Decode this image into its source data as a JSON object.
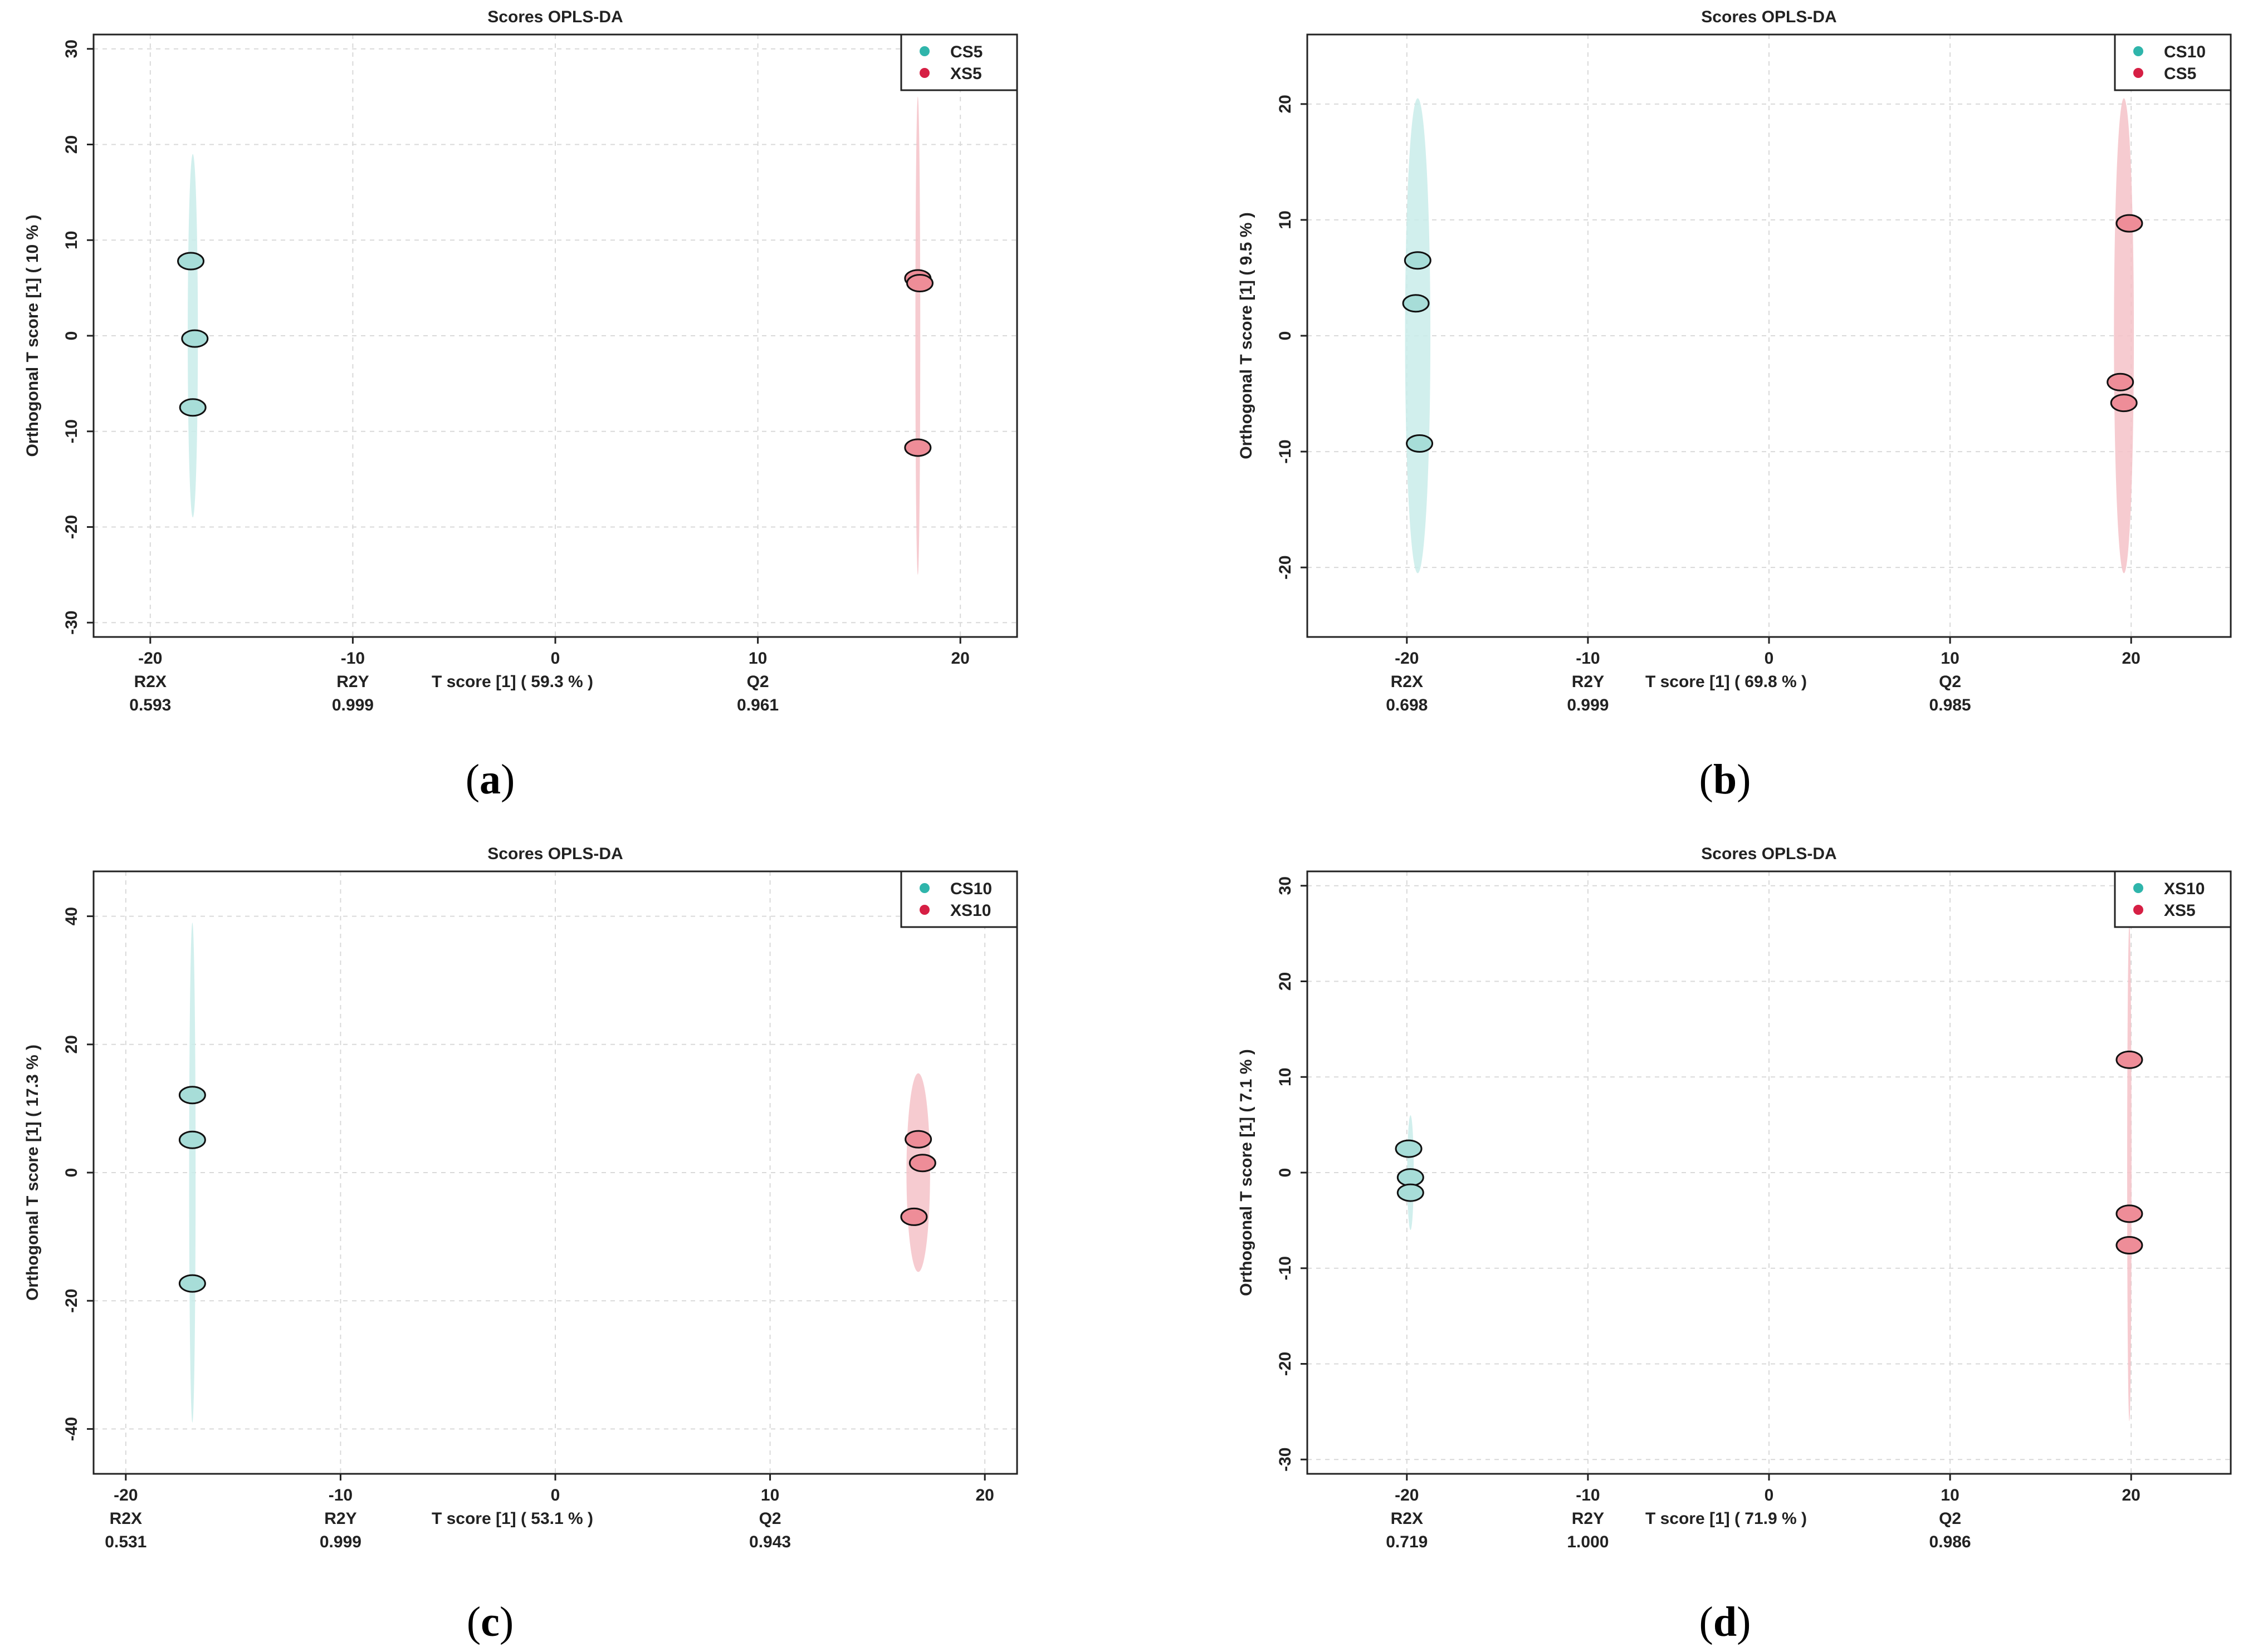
{
  "figure_type": "opls-da-scores-grid",
  "colors": {
    "group1_fill": "#a7ddd8",
    "group1_ellipse": "#c9ecea",
    "group1_legend": "#2fb5ab",
    "group2_fill": "#ee8d98",
    "group2_ellipse": "#f5c2c8",
    "group2_legend": "#d61f44",
    "grid": "#d9d9d9"
  },
  "chart_data": [
    {
      "type": "scatter",
      "caption": "a",
      "title": "Scores OPLS-DA",
      "xlabel": "T score [1] ( 59.3 % )",
      "ylabel": "Orthogonal T score [1] ( 10 % )",
      "xlim": [
        -22.8,
        22.8
      ],
      "ylim": [
        -31.5,
        31.5
      ],
      "xticks": [
        -20,
        -10,
        0,
        10,
        20
      ],
      "yticks": [
        -30,
        -20,
        -10,
        0,
        10,
        20,
        30
      ],
      "grid": true,
      "legend_position": "top-right",
      "stats": [
        {
          "label": "R2X",
          "value": "0.593",
          "x": -20
        },
        {
          "label": "R2Y",
          "value": "0.999",
          "x": -10
        },
        {
          "label": "Q2",
          "value": "0.961",
          "x": 10
        }
      ],
      "series": [
        {
          "name": "CS5",
          "points": [
            {
              "x": -18.0,
              "y": 7.8
            },
            {
              "x": -17.8,
              "y": -0.3
            },
            {
              "x": -17.9,
              "y": -7.5
            }
          ],
          "ellipse": {
            "cx": -17.9,
            "cy": 0,
            "rx": 0.25,
            "ry": 19
          }
        },
        {
          "name": "XS5",
          "points": [
            {
              "x": 17.9,
              "y": 6.0
            },
            {
              "x": 18.0,
              "y": 5.5
            },
            {
              "x": 17.9,
              "y": -11.7
            }
          ],
          "ellipse": {
            "cx": 17.9,
            "cy": 0,
            "rx": 0.12,
            "ry": 25
          }
        }
      ]
    },
    {
      "type": "scatter",
      "caption": "b",
      "title": "Scores OPLS-DA",
      "xlabel": "T score [1] ( 69.8 % )",
      "ylabel": "Orthogonal T score [1] ( 9.5 % )",
      "xlim": [
        -25.5,
        25.5
      ],
      "ylim": [
        -26,
        26
      ],
      "xticks": [
        -20,
        -10,
        0,
        10,
        20
      ],
      "yticks": [
        -20,
        -10,
        0,
        10,
        20
      ],
      "grid": true,
      "legend_position": "top-right",
      "stats": [
        {
          "label": "R2X",
          "value": "0.698",
          "x": -20
        },
        {
          "label": "R2Y",
          "value": "0.999",
          "x": -10
        },
        {
          "label": "Q2",
          "value": "0.985",
          "x": 10
        }
      ],
      "series": [
        {
          "name": "CS10",
          "points": [
            {
              "x": -19.4,
              "y": 6.5
            },
            {
              "x": -19.5,
              "y": 2.8
            },
            {
              "x": -19.3,
              "y": -9.3
            }
          ],
          "ellipse": {
            "cx": -19.4,
            "cy": 0,
            "rx": 0.7,
            "ry": 20.5
          }
        },
        {
          "name": "CS5",
          "points": [
            {
              "x": 19.9,
              "y": 9.7
            },
            {
              "x": 19.4,
              "y": -4.0
            },
            {
              "x": 19.6,
              "y": -5.8
            }
          ],
          "ellipse": {
            "cx": 19.6,
            "cy": 0,
            "rx": 0.55,
            "ry": 20.5
          }
        }
      ]
    },
    {
      "type": "scatter",
      "caption": "c",
      "title": "Scores OPLS-DA",
      "xlabel": "T score [1] ( 53.1 % )",
      "ylabel": "Orthogonal T score [1] ( 17.3 % )",
      "xlim": [
        -21.5,
        21.5
      ],
      "ylim": [
        -47,
        47
      ],
      "xticks": [
        -20,
        -10,
        0,
        10,
        20
      ],
      "yticks": [
        -40,
        -20,
        0,
        20,
        40
      ],
      "grid": true,
      "legend_position": "top-right",
      "stats": [
        {
          "label": "R2X",
          "value": "0.531",
          "x": -20
        },
        {
          "label": "R2Y",
          "value": "0.999",
          "x": -10
        },
        {
          "label": "Q2",
          "value": "0.943",
          "x": 10
        }
      ],
      "series": [
        {
          "name": "CS10",
          "points": [
            {
              "x": -16.9,
              "y": 12.1
            },
            {
              "x": -16.9,
              "y": 5.1
            },
            {
              "x": -16.9,
              "y": -17.3
            }
          ],
          "ellipse": {
            "cx": -16.9,
            "cy": 0,
            "rx": 0.15,
            "ry": 39
          }
        },
        {
          "name": "XS10",
          "points": [
            {
              "x": 16.9,
              "y": 5.2
            },
            {
              "x": 17.1,
              "y": 1.5
            },
            {
              "x": 16.7,
              "y": -6.9
            }
          ],
          "ellipse": {
            "cx": 16.9,
            "cy": 0,
            "rx": 0.55,
            "ry": 15.5
          }
        }
      ]
    },
    {
      "type": "scatter",
      "caption": "d",
      "title": "Scores OPLS-DA",
      "xlabel": "T score [1] ( 71.9 % )",
      "ylabel": "Orthogonal T score [1] ( 7.1 % )",
      "xlim": [
        -25.5,
        25.5
      ],
      "ylim": [
        -31.5,
        31.5
      ],
      "xticks": [
        -20,
        -10,
        0,
        10,
        20
      ],
      "yticks": [
        -30,
        -20,
        -10,
        0,
        10,
        20,
        30
      ],
      "grid": true,
      "legend_position": "top-right",
      "stats": [
        {
          "label": "R2X",
          "value": "0.719",
          "x": -20
        },
        {
          "label": "R2Y",
          "value": "1.000",
          "x": -10
        },
        {
          "label": "Q2",
          "value": "0.986",
          "x": 10
        }
      ],
      "series": [
        {
          "name": "XS10",
          "points": [
            {
              "x": -19.9,
              "y": 2.5
            },
            {
              "x": -19.8,
              "y": -0.5
            },
            {
              "x": -19.8,
              "y": -2.1
            }
          ],
          "ellipse": {
            "cx": -19.8,
            "cy": 0,
            "rx": 0.18,
            "ry": 6
          }
        },
        {
          "name": "XS5",
          "points": [
            {
              "x": 19.9,
              "y": 11.8
            },
            {
              "x": 19.9,
              "y": -4.3
            },
            {
              "x": 19.9,
              "y": -7.6
            }
          ],
          "ellipse": {
            "cx": 19.9,
            "cy": 0,
            "rx": 0.12,
            "ry": 26
          }
        }
      ]
    }
  ]
}
